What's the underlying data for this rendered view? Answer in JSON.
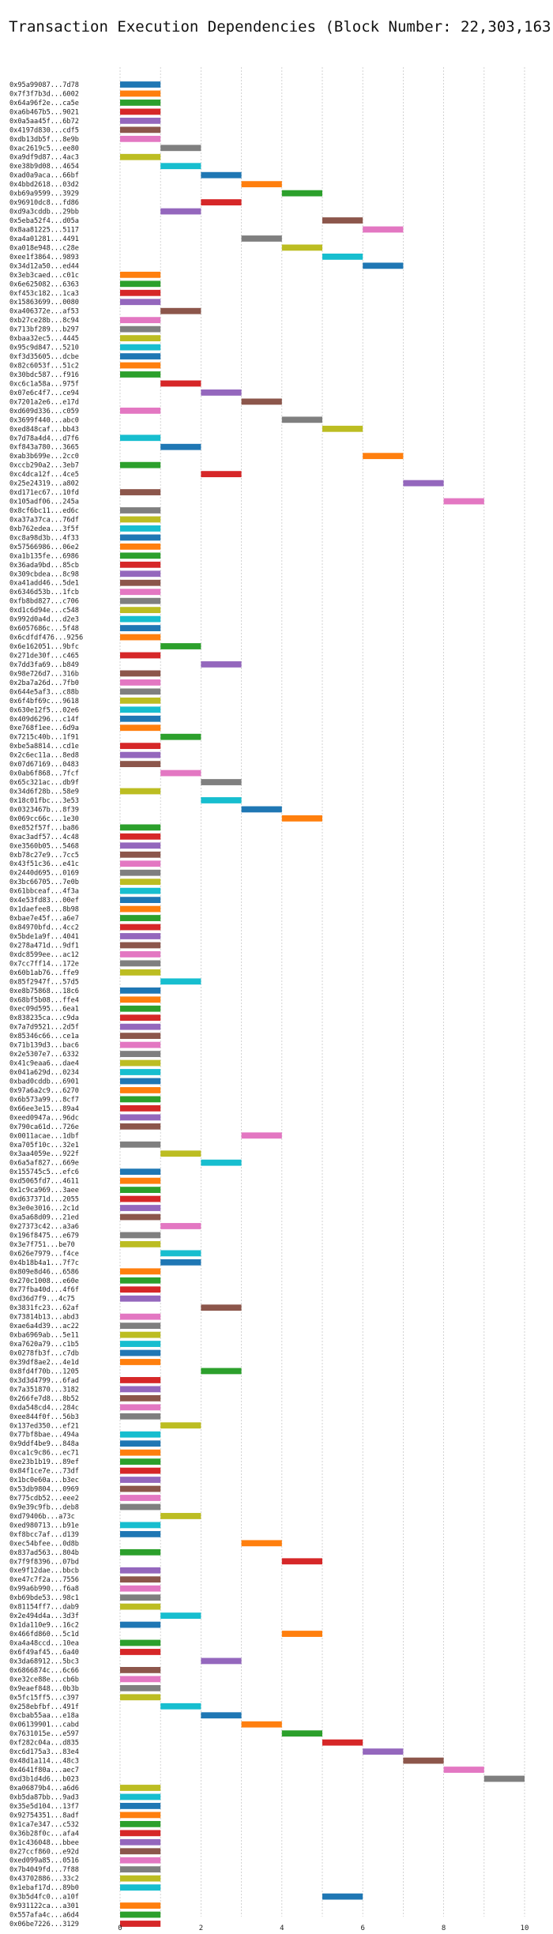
{
  "chart_data": {
    "type": "bar",
    "orientation": "horizontal-gantt",
    "title": "Transaction Execution Dependencies (Block Number: 22,303,163)",
    "xlabel": "",
    "ylabel": "",
    "xlim": [
      0,
      10.5
    ],
    "xticks": [
      0,
      2,
      4,
      6,
      8,
      10
    ],
    "grid": true,
    "colors": [
      "#1f77b4",
      "#ff7f0e",
      "#2ca02c",
      "#d62728",
      "#9467bd",
      "#8c564b",
      "#e377c2",
      "#7f7f7f",
      "#bcbd22",
      "#17becf"
    ],
    "transactions": [
      {
        "label": "0x95a99087...7d78",
        "start": 0,
        "end": 1
      },
      {
        "label": "0x7f3f7b3d...6002",
        "start": 0,
        "end": 1
      },
      {
        "label": "0x64a96f2e...ca5e",
        "start": 0,
        "end": 1
      },
      {
        "label": "0xa6b467b5...9021",
        "start": 0,
        "end": 1
      },
      {
        "label": "0x0a5aa45f...6b72",
        "start": 0,
        "end": 1
      },
      {
        "label": "0x4197d830...cdf5",
        "start": 0,
        "end": 1
      },
      {
        "label": "0xdb13db5f...8e9b",
        "start": 0,
        "end": 1
      },
      {
        "label": "0xac2619c5...ee80",
        "start": 1,
        "end": 2
      },
      {
        "label": "0xa9df9d87...4ac3",
        "start": 0,
        "end": 1
      },
      {
        "label": "0xe38b9d08...4654",
        "start": 1,
        "end": 2
      },
      {
        "label": "0xad0a9aca...66bf",
        "start": 2,
        "end": 3
      },
      {
        "label": "0x4bbd2618...03d2",
        "start": 3,
        "end": 4
      },
      {
        "label": "0xb69a9599...3929",
        "start": 4,
        "end": 5
      },
      {
        "label": "0x96910dc8...fd86",
        "start": 2,
        "end": 3
      },
      {
        "label": "0xd9a3cddb...29bb",
        "start": 1,
        "end": 2
      },
      {
        "label": "0x5eba52f4...d05a",
        "start": 5,
        "end": 6
      },
      {
        "label": "0x8aa81225...5117",
        "start": 6,
        "end": 7
      },
      {
        "label": "0xa4a01281...4491",
        "start": 3,
        "end": 4
      },
      {
        "label": "0xa018e948...c28e",
        "start": 4,
        "end": 5
      },
      {
        "label": "0xee1f3864...9893",
        "start": 5,
        "end": 6
      },
      {
        "label": "0x34d12a50...ed44",
        "start": 6,
        "end": 7
      },
      {
        "label": "0x3eb3caed...c01c",
        "start": 0,
        "end": 1
      },
      {
        "label": "0x6e625082...6363",
        "start": 0,
        "end": 1
      },
      {
        "label": "0xf453c182...1ca3",
        "start": 0,
        "end": 1
      },
      {
        "label": "0x15863699...0080",
        "start": 0,
        "end": 1
      },
      {
        "label": "0xa406372e...af53",
        "start": 1,
        "end": 2
      },
      {
        "label": "0xb27ce28b...8c94",
        "start": 0,
        "end": 1
      },
      {
        "label": "0x713bf289...b297",
        "start": 0,
        "end": 1
      },
      {
        "label": "0xbaa32ec5...4445",
        "start": 0,
        "end": 1
      },
      {
        "label": "0x95c9d847...5210",
        "start": 0,
        "end": 1
      },
      {
        "label": "0xf3d35605...dcbe",
        "start": 0,
        "end": 1
      },
      {
        "label": "0x82c6053f...51c2",
        "start": 0,
        "end": 1
      },
      {
        "label": "0x30bdc587...f916",
        "start": 0,
        "end": 1
      },
      {
        "label": "0xc6c1a58a...975f",
        "start": 1,
        "end": 2
      },
      {
        "label": "0x07e6c4f7...ce94",
        "start": 2,
        "end": 3
      },
      {
        "label": "0x7201a2e6...e17d",
        "start": 3,
        "end": 4
      },
      {
        "label": "0xd609d336...c059",
        "start": 0,
        "end": 1
      },
      {
        "label": "0x3699f440...abc0",
        "start": 4,
        "end": 5
      },
      {
        "label": "0xed848caf...bb43",
        "start": 5,
        "end": 6
      },
      {
        "label": "0x7d78a4d4...d7f6",
        "start": 0,
        "end": 1
      },
      {
        "label": "0xf843a780...3665",
        "start": 1,
        "end": 2
      },
      {
        "label": "0xab3b699e...2cc0",
        "start": 6,
        "end": 7
      },
      {
        "label": "0xccb290a2...3eb7",
        "start": 0,
        "end": 1
      },
      {
        "label": "0xc4dca12f...4ce5",
        "start": 2,
        "end": 3
      },
      {
        "label": "0x25e24319...a802",
        "start": 7,
        "end": 8
      },
      {
        "label": "0xd171ec67...10fd",
        "start": 0,
        "end": 1
      },
      {
        "label": "0x105adf06...245a",
        "start": 8,
        "end": 9
      },
      {
        "label": "0x8cf6bc11...ed6c",
        "start": 0,
        "end": 1
      },
      {
        "label": "0xa37a37ca...76df",
        "start": 0,
        "end": 1
      },
      {
        "label": "0xb762edea...3f5f",
        "start": 0,
        "end": 1
      },
      {
        "label": "0xc8a98d3b...4f33",
        "start": 0,
        "end": 1
      },
      {
        "label": "0x57566986...06e2",
        "start": 0,
        "end": 1
      },
      {
        "label": "0xa1b135fe...6986",
        "start": 0,
        "end": 1
      },
      {
        "label": "0x36ada9bd...85cb",
        "start": 0,
        "end": 1
      },
      {
        "label": "0x309cbdea...8c98",
        "start": 0,
        "end": 1
      },
      {
        "label": "0xa41add46...5de1",
        "start": 0,
        "end": 1
      },
      {
        "label": "0x6346d53b...1fcb",
        "start": 0,
        "end": 1
      },
      {
        "label": "0xfb8bd827...c706",
        "start": 0,
        "end": 1
      },
      {
        "label": "0xd1c6d94e...c548",
        "start": 0,
        "end": 1
      },
      {
        "label": "0x992d0a4d...d2e3",
        "start": 0,
        "end": 1
      },
      {
        "label": "0x6057686c...5f48",
        "start": 0,
        "end": 1
      },
      {
        "label": "0x6cdfdf476...9256",
        "start": 0,
        "end": 1
      },
      {
        "label": "0x6e162051...9bfc",
        "start": 1,
        "end": 2
      },
      {
        "label": "0x271de30f...c465",
        "start": 0,
        "end": 1
      },
      {
        "label": "0x7dd3fa69...b849",
        "start": 2,
        "end": 3
      },
      {
        "label": "0x98e726d7...316b",
        "start": 0,
        "end": 1
      },
      {
        "label": "0x2ba7a26d...7fb0",
        "start": 0,
        "end": 1
      },
      {
        "label": "0x644e5af3...c88b",
        "start": 0,
        "end": 1
      },
      {
        "label": "0x6f4bf69c...9618",
        "start": 0,
        "end": 1
      },
      {
        "label": "0x630e12f5...02e6",
        "start": 0,
        "end": 1
      },
      {
        "label": "0x409d6296...c14f",
        "start": 0,
        "end": 1
      },
      {
        "label": "0xe768f1ee...6d9a",
        "start": 0,
        "end": 1
      },
      {
        "label": "0x7215c40b...1f91",
        "start": 1,
        "end": 2
      },
      {
        "label": "0xbe5a8814...cd1e",
        "start": 0,
        "end": 1
      },
      {
        "label": "0x2c6ec11a...8ed8",
        "start": 0,
        "end": 1
      },
      {
        "label": "0x07d67169...0483",
        "start": 0,
        "end": 1
      },
      {
        "label": "0x0ab6f868...7fcf",
        "start": 1,
        "end": 2
      },
      {
        "label": "0x65c321ac...db9f",
        "start": 2,
        "end": 3
      },
      {
        "label": "0x34d6f28b...58e9",
        "start": 0,
        "end": 1
      },
      {
        "label": "0x18c01fbc...3e53",
        "start": 2,
        "end": 3
      },
      {
        "label": "0x0323467b...8f39",
        "start": 3,
        "end": 4
      },
      {
        "label": "0x069cc66c...1e30",
        "start": 4,
        "end": 5
      },
      {
        "label": "0xe852f57f...ba86",
        "start": 0,
        "end": 1
      },
      {
        "label": "0xac3adf57...4c48",
        "start": 0,
        "end": 1
      },
      {
        "label": "0xe3560b05...5468",
        "start": 0,
        "end": 1
      },
      {
        "label": "0xb78c27e9...7cc5",
        "start": 0,
        "end": 1
      },
      {
        "label": "0x43f51c36...e41c",
        "start": 0,
        "end": 1
      },
      {
        "label": "0x2440d695...0169",
        "start": 0,
        "end": 1
      },
      {
        "label": "0x3bc66705...7e0b",
        "start": 0,
        "end": 1
      },
      {
        "label": "0x61bbceaf...4f3a",
        "start": 0,
        "end": 1
      },
      {
        "label": "0x4e53fd83...00ef",
        "start": 0,
        "end": 1
      },
      {
        "label": "0x1daefee8...8b98",
        "start": 0,
        "end": 1
      },
      {
        "label": "0xbae7e45f...a6e7",
        "start": 0,
        "end": 1
      },
      {
        "label": "0x84970bfd...4cc2",
        "start": 0,
        "end": 1
      },
      {
        "label": "0x5bde1a9f...4041",
        "start": 0,
        "end": 1
      },
      {
        "label": "0x278a471d...9df1",
        "start": 0,
        "end": 1
      },
      {
        "label": "0xdc8599ee...ac12",
        "start": 0,
        "end": 1
      },
      {
        "label": "0x7cc7ff14...172e",
        "start": 0,
        "end": 1
      },
      {
        "label": "0x60b1ab76...ffe9",
        "start": 0,
        "end": 1
      },
      {
        "label": "0x85f2947f...57d5",
        "start": 1,
        "end": 2
      },
      {
        "label": "0xe8b75868...18c6",
        "start": 0,
        "end": 1
      },
      {
        "label": "0x68bf5b08...ffe4",
        "start": 0,
        "end": 1
      },
      {
        "label": "0xec09d595...6ea1",
        "start": 0,
        "end": 1
      },
      {
        "label": "0x838235ca...c9da",
        "start": 0,
        "end": 1
      },
      {
        "label": "0x7a7d9521...2d5f",
        "start": 0,
        "end": 1
      },
      {
        "label": "0x85346c66...ce1a",
        "start": 0,
        "end": 1
      },
      {
        "label": "0x71b139d3...bac6",
        "start": 0,
        "end": 1
      },
      {
        "label": "0x2e5307e7...6332",
        "start": 0,
        "end": 1
      },
      {
        "label": "0x41c9eaa6...dae4",
        "start": 0,
        "end": 1
      },
      {
        "label": "0x041a629d...0234",
        "start": 0,
        "end": 1
      },
      {
        "label": "0xbad0cddb...6901",
        "start": 0,
        "end": 1
      },
      {
        "label": "0x97a6a2c9...6270",
        "start": 0,
        "end": 1
      },
      {
        "label": "0x6b573a99...8cf7",
        "start": 0,
        "end": 1
      },
      {
        "label": "0x66ee3e15...89a4",
        "start": 0,
        "end": 1
      },
      {
        "label": "0xeed0947a...96dc",
        "start": 0,
        "end": 1
      },
      {
        "label": "0x790ca61d...726e",
        "start": 0,
        "end": 1
      },
      {
        "label": "0x0011acae...1dbf",
        "start": 3,
        "end": 4
      },
      {
        "label": "0xa705f10c...32e1",
        "start": 0,
        "end": 1
      },
      {
        "label": "0x3aa4059e...922f",
        "start": 1,
        "end": 2
      },
      {
        "label": "0x6a5af827...669e",
        "start": 2,
        "end": 3
      },
      {
        "label": "0x155745c5...efc6",
        "start": 0,
        "end": 1
      },
      {
        "label": "0xd5065fd7...4611",
        "start": 0,
        "end": 1
      },
      {
        "label": "0x1c9ca969...3aee",
        "start": 0,
        "end": 1
      },
      {
        "label": "0xd637371d...2055",
        "start": 0,
        "end": 1
      },
      {
        "label": "0x3e0e3016...2c1d",
        "start": 0,
        "end": 1
      },
      {
        "label": "0xa5a68d09...21ed",
        "start": 0,
        "end": 1
      },
      {
        "label": "0x27373c42...a3a6",
        "start": 1,
        "end": 2
      },
      {
        "label": "0x196f8475...e679",
        "start": 0,
        "end": 1
      },
      {
        "label": "0x3e7f751...be70",
        "start": 0,
        "end": 1
      },
      {
        "label": "0x626e7979...f4ce",
        "start": 1,
        "end": 2
      },
      {
        "label": "0x4b18b4a1...7f7c",
        "start": 1,
        "end": 2
      },
      {
        "label": "0x809e8d46...6586",
        "start": 0,
        "end": 1
      },
      {
        "label": "0x270c1008...e60e",
        "start": 0,
        "end": 1
      },
      {
        "label": "0x77fba40d...4f6f",
        "start": 0,
        "end": 1
      },
      {
        "label": "0xd36d7f9...4c75",
        "start": 0,
        "end": 1
      },
      {
        "label": "0x3831fc23...62af",
        "start": 2,
        "end": 3
      },
      {
        "label": "0x73814b13...abd3",
        "start": 0,
        "end": 1
      },
      {
        "label": "0xae6a4d39...ac22",
        "start": 0,
        "end": 1
      },
      {
        "label": "0xba6969ab...5e11",
        "start": 0,
        "end": 1
      },
      {
        "label": "0xa7620a79...c1b5",
        "start": 0,
        "end": 1
      },
      {
        "label": "0x0278fb3f...c7db",
        "start": 0,
        "end": 1
      },
      {
        "label": "0x39df8ae2...4e1d",
        "start": 0,
        "end": 1
      },
      {
        "label": "0x8fd4f70b...1205",
        "start": 2,
        "end": 3
      },
      {
        "label": "0x3d3d4799...6fad",
        "start": 0,
        "end": 1
      },
      {
        "label": "0x7a351870...3182",
        "start": 0,
        "end": 1
      },
      {
        "label": "0x266fe7d8...8b52",
        "start": 0,
        "end": 1
      },
      {
        "label": "0xda548cd4...284c",
        "start": 0,
        "end": 1
      },
      {
        "label": "0xee844f0f...56b3",
        "start": 0,
        "end": 1
      },
      {
        "label": "0x137ed350...ef21",
        "start": 1,
        "end": 2
      },
      {
        "label": "0x77bf8bae...494a",
        "start": 0,
        "end": 1
      },
      {
        "label": "0x9ddf4be9...848a",
        "start": 0,
        "end": 1
      },
      {
        "label": "0xca1c9c86...ec71",
        "start": 0,
        "end": 1
      },
      {
        "label": "0xe23b1b19...89ef",
        "start": 0,
        "end": 1
      },
      {
        "label": "0x84f1ce7e...73df",
        "start": 0,
        "end": 1
      },
      {
        "label": "0x1bc0e60a...b3ec",
        "start": 0,
        "end": 1
      },
      {
        "label": "0x53db9804...0969",
        "start": 0,
        "end": 1
      },
      {
        "label": "0x775cdb52...eee2",
        "start": 0,
        "end": 1
      },
      {
        "label": "0x9e39c9fb...deb8",
        "start": 0,
        "end": 1
      },
      {
        "label": "0xd79406b...a73c",
        "start": 1,
        "end": 2
      },
      {
        "label": "0xed980713...b91e",
        "start": 0,
        "end": 1
      },
      {
        "label": "0xf8bcc7af...d139",
        "start": 0,
        "end": 1
      },
      {
        "label": "0xec54bfee...0d8b",
        "start": 3,
        "end": 4
      },
      {
        "label": "0x837ad563...804b",
        "start": 0,
        "end": 1
      },
      {
        "label": "0x7f9f8396...07bd",
        "start": 4,
        "end": 5
      },
      {
        "label": "0xe9f12dae...bbcb",
        "start": 0,
        "end": 1
      },
      {
        "label": "0xe47c7f2a...7556",
        "start": 0,
        "end": 1
      },
      {
        "label": "0x99a6b990...f6a8",
        "start": 0,
        "end": 1
      },
      {
        "label": "0xb69bde53...98c1",
        "start": 0,
        "end": 1
      },
      {
        "label": "0x81154ff7...dab9",
        "start": 0,
        "end": 1
      },
      {
        "label": "0x2e494d4a...3d3f",
        "start": 1,
        "end": 2
      },
      {
        "label": "0x1da110e9...16c2",
        "start": 0,
        "end": 1
      },
      {
        "label": "0x466fd860...5c1d",
        "start": 4,
        "end": 5
      },
      {
        "label": "0xa4a48ccd...10ea",
        "start": 0,
        "end": 1
      },
      {
        "label": "0x6f49af45...6a40",
        "start": 0,
        "end": 1
      },
      {
        "label": "0x3da68912...5bc3",
        "start": 2,
        "end": 3
      },
      {
        "label": "0x6866874c...6c66",
        "start": 0,
        "end": 1
      },
      {
        "label": "0xe32ce88e...cb6b",
        "start": 0,
        "end": 1
      },
      {
        "label": "0x9eaef848...0b3b",
        "start": 0,
        "end": 1
      },
      {
        "label": "0x5fc15ff5...c397",
        "start": 0,
        "end": 1
      },
      {
        "label": "0x258ebfbf...491f",
        "start": 1,
        "end": 2
      },
      {
        "label": "0xcbab55aa...e18a",
        "start": 2,
        "end": 3
      },
      {
        "label": "0x06139901...cabd",
        "start": 3,
        "end": 4
      },
      {
        "label": "0x7631015e...e597",
        "start": 4,
        "end": 5
      },
      {
        "label": "0xf282c04a...d835",
        "start": 5,
        "end": 6
      },
      {
        "label": "0xc6d175a3...83e4",
        "start": 6,
        "end": 7
      },
      {
        "label": "0x48d1a114...48c3",
        "start": 7,
        "end": 8
      },
      {
        "label": "0x4641f80a...aec7",
        "start": 8,
        "end": 9
      },
      {
        "label": "0xd3b1d4d6...b023",
        "start": 9,
        "end": 10
      },
      {
        "label": "0xa06879b4...a6d6",
        "start": 0,
        "end": 1
      },
      {
        "label": "0xb5da87bb...9ad3",
        "start": 0,
        "end": 1
      },
      {
        "label": "0x35e5d104...13f7",
        "start": 0,
        "end": 1
      },
      {
        "label": "0x92754351...8adf",
        "start": 0,
        "end": 1
      },
      {
        "label": "0x1ca7e347...c532",
        "start": 0,
        "end": 1
      },
      {
        "label": "0x36b28f0c...afa4",
        "start": 0,
        "end": 1
      },
      {
        "label": "0x1c436048...bbee",
        "start": 0,
        "end": 1
      },
      {
        "label": "0x27ccf860...e92d",
        "start": 0,
        "end": 1
      },
      {
        "label": "0xed099a85...0516",
        "start": 0,
        "end": 1
      },
      {
        "label": "0x7b4049fd...7f88",
        "start": 0,
        "end": 1
      },
      {
        "label": "0x43702886...33c2",
        "start": 0,
        "end": 1
      },
      {
        "label": "0x1ebaf17d...89b0",
        "start": 0,
        "end": 1
      },
      {
        "label": "0x3b5d4fc0...a10f",
        "start": 5,
        "end": 6
      },
      {
        "label": "0x931122ca...a301",
        "start": 0,
        "end": 1
      },
      {
        "label": "0x557afa4c...a6d4",
        "start": 0,
        "end": 1
      },
      {
        "label": "0x06be7226...3129",
        "start": 0,
        "end": 1
      }
    ]
  }
}
